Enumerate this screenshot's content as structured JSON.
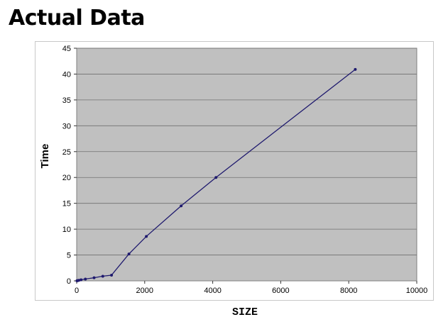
{
  "page_title": "Actual Data",
  "chart_data": {
    "type": "line",
    "title": "",
    "xlabel": "SIZE",
    "ylabel": "Time",
    "xlim": [
      0,
      10000
    ],
    "ylim": [
      0,
      45
    ],
    "xticks": [
      0,
      2000,
      4000,
      6000,
      8000,
      10000
    ],
    "yticks": [
      0,
      5,
      10,
      15,
      20,
      25,
      30,
      35,
      40,
      45
    ],
    "grid": "horizontal",
    "legend": "none",
    "plot_bg": "#c0c0c0",
    "line_color": "#1f1a6e",
    "series": [
      {
        "x": [
          8,
          16,
          32,
          64,
          128,
          256,
          512,
          768,
          1024,
          1536,
          2048,
          3072,
          4096,
          8192
        ],
        "y": [
          0.02,
          0.04,
          0.06,
          0.1,
          0.2,
          0.35,
          0.6,
          0.9,
          1.1,
          5.2,
          8.6,
          14.5,
          20.0,
          40.9
        ]
      }
    ]
  }
}
